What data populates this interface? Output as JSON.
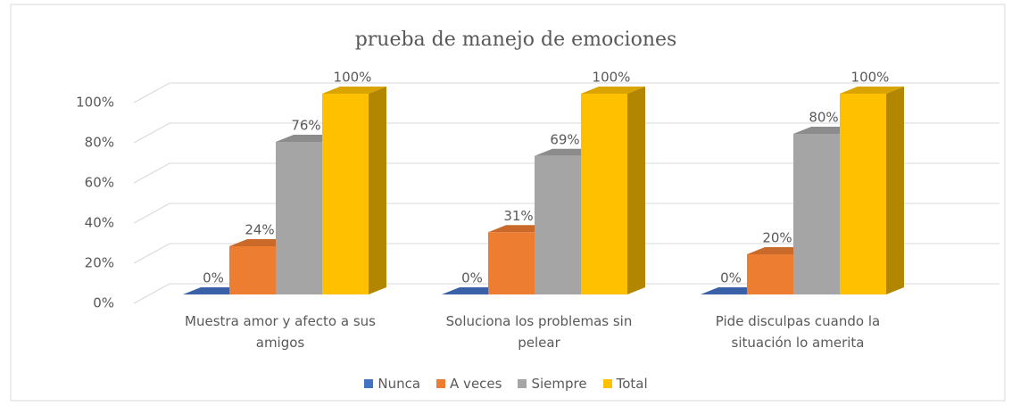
{
  "chart_data": {
    "type": "bar3d",
    "title": "prueba de manejo de emociones",
    "categories": [
      "Muestra amor y afecto a sus amigos",
      "Soluciona los problemas sin pelear",
      "Pide disculpas cuando la situación lo amerita"
    ],
    "series": [
      {
        "name": "Nunca",
        "color": "#4472c4",
        "values": [
          0,
          0,
          0
        ],
        "value_labels": [
          "0%",
          "0%",
          "0%"
        ]
      },
      {
        "name": "A veces",
        "color": "#ed7d31",
        "values": [
          24,
          31,
          20
        ],
        "value_labels": [
          "24%",
          "31%",
          "20%"
        ]
      },
      {
        "name": "Siempre",
        "color": "#a5a5a5",
        "values": [
          76,
          69,
          80
        ],
        "value_labels": [
          "76%",
          "69%",
          "80%"
        ]
      },
      {
        "name": "Total",
        "color": "#ffc000",
        "values": [
          100,
          100,
          100
        ],
        "value_labels": [
          "100%",
          "100%",
          "100%"
        ]
      }
    ],
    "ylim": [
      0,
      100
    ],
    "yticks": [
      {
        "value": 0,
        "label": "0%"
      },
      {
        "value": 20,
        "label": "20%"
      },
      {
        "value": 40,
        "label": "40%"
      },
      {
        "value": 60,
        "label": "60%"
      },
      {
        "value": 80,
        "label": "80%"
      },
      {
        "value": 100,
        "label": "100%"
      }
    ],
    "grid": true,
    "legend": "bottom"
  }
}
